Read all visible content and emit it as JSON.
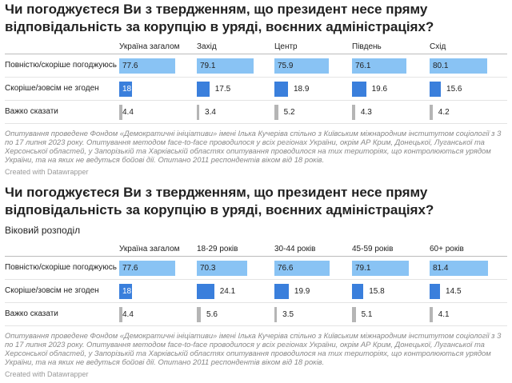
{
  "chart_data": [
    {
      "type": "bar",
      "title": "Чи погоджуєтеся Ви з твердженням, що президент несе пряму відповідальність за корупцію в уряді, воєнних адміністраціях?",
      "categories": [
        "Повністю/скоріше погоджуюсь",
        "Скоріше/зовсім не згоден",
        "Важко сказати"
      ],
      "category_colors": [
        "#89c3f4",
        "#3a7fdc",
        "#b5b5b5"
      ],
      "xlim": [
        0,
        100
      ],
      "series": [
        {
          "name": "Україна загалом",
          "values": [
            77.6,
            18,
            4.4
          ]
        },
        {
          "name": "Захід",
          "values": [
            79.1,
            17.5,
            3.4
          ]
        },
        {
          "name": "Центр",
          "values": [
            75.9,
            18.9,
            5.2
          ]
        },
        {
          "name": "Південь",
          "values": [
            76.1,
            19.6,
            4.3
          ]
        },
        {
          "name": "Схід",
          "values": [
            80.1,
            15.6,
            4.2
          ]
        }
      ],
      "note": "Опитування проведене Фондом «Демократичні ініціативи» імені Ілька Кучеріва спільно з Київським міжнародним інститутом соціології з 3 по 17 липня 2023 року. Опитування методом face-to-face проводилося у всіх регіонах України, окрім АР Крим, Донецької, Луганської та Херсонської областей, у Запорізькій та Харківській областях опитування проводилося на тих територіях, що контролюються урядом України, та на яких не ведуться бойові дії. Опитано 2011 респондентів віком від 18 років.",
      "credit": "Created with Datawrapper"
    },
    {
      "type": "bar",
      "title": "Чи погоджуєтеся Ви з твердженням, що президент несе пряму відповідальність за корупцію в уряді, воєнних адміністраціях?",
      "subtitle": "Віковий розподіл",
      "categories": [
        "Повністю/скоріше погоджуюсь",
        "Скоріше/зовсім не згоден",
        "Важко сказати"
      ],
      "category_colors": [
        "#89c3f4",
        "#3a7fdc",
        "#b5b5b5"
      ],
      "xlim": [
        0,
        100
      ],
      "series": [
        {
          "name": "Україна загалом",
          "values": [
            77.6,
            18,
            4.4
          ]
        },
        {
          "name": "18-29 років",
          "values": [
            70.3,
            24.1,
            5.6
          ]
        },
        {
          "name": "30-44 років",
          "values": [
            76.6,
            19.9,
            3.5
          ]
        },
        {
          "name": "45-59 років",
          "values": [
            79.1,
            15.8,
            5.1
          ]
        },
        {
          "name": "60+ років",
          "values": [
            81.4,
            14.5,
            4.1
          ]
        }
      ],
      "note": "Опитування проведене Фондом «Демократичні ініціативи» імені Ілька Кучеріва спільно з Київським міжнародним інститутом соціології з 3 по 17 липня 2023 року. Опитування методом face-to-face проводилося у всіх регіонах України, окрім АР Крим, Донецької, Луганської та Херсонської областей, у Запорізькій та Харківській областях опитування проводилося на тих територіях, що контролюються урядом України, та на яких не ведуться бойові дії. Опитано 2011 респондентів віком від 18 років.",
      "credit": "Created with Datawrapper"
    }
  ]
}
